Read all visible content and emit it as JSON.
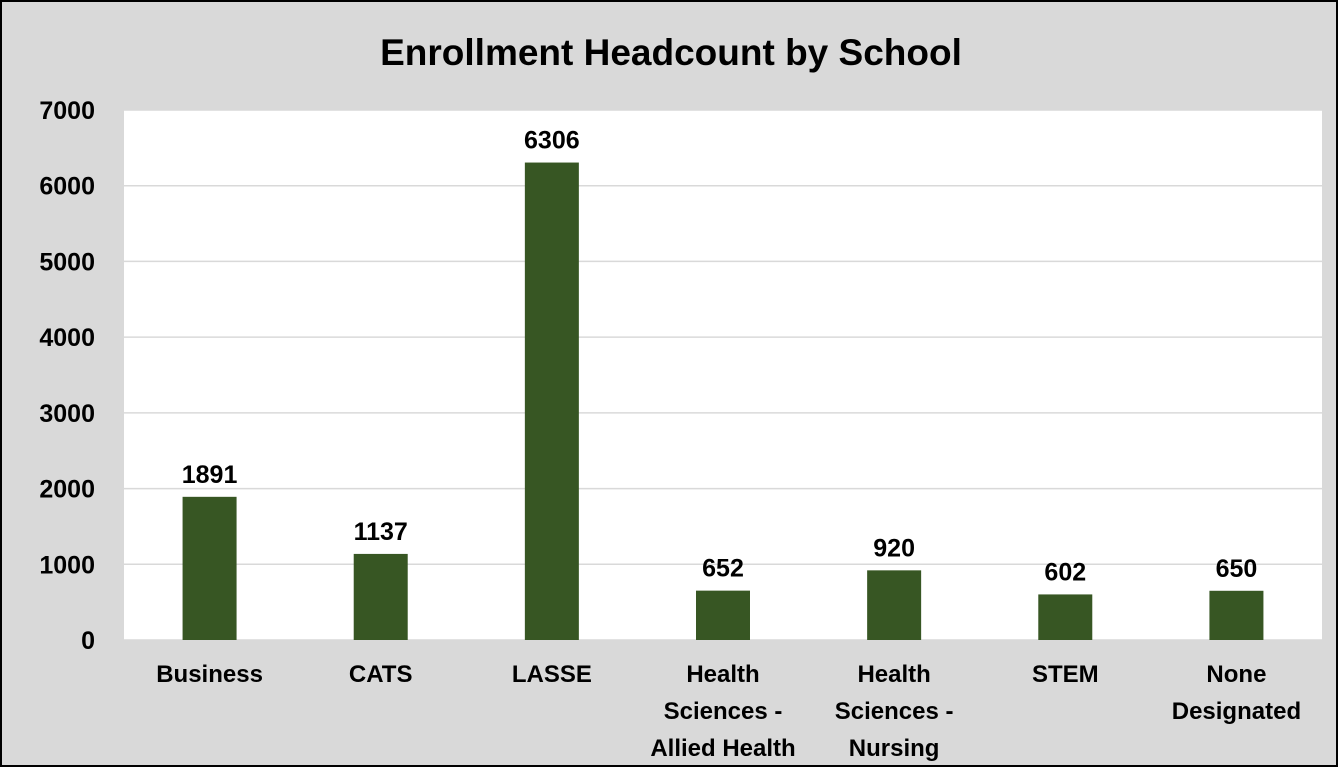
{
  "chart_data": {
    "type": "bar",
    "title": "Enrollment Headcount by School",
    "categories": [
      [
        "Business"
      ],
      [
        "CATS"
      ],
      [
        "LASSE"
      ],
      [
        "Health",
        "Sciences -",
        "Allied Health"
      ],
      [
        "Health",
        "Sciences -",
        "Nursing"
      ],
      [
        "STEM"
      ],
      [
        "None",
        "Designated"
      ]
    ],
    "values": [
      1891,
      1137,
      6306,
      652,
      920,
      602,
      650
    ],
    "data_labels": [
      "1891",
      "1137",
      "6306",
      "652",
      "920",
      "602",
      "650"
    ],
    "y_ticks": [
      "0",
      "1000",
      "2000",
      "3000",
      "4000",
      "5000",
      "6000",
      "7000"
    ],
    "ylim": [
      0,
      7000
    ],
    "xlabel": "",
    "ylabel": "",
    "grid": true,
    "legend": "none",
    "colors": {
      "bar": "#375623",
      "background": "#d9d9d9",
      "plot_area": "#ffffff",
      "gridline": "#d9d9d9"
    }
  }
}
